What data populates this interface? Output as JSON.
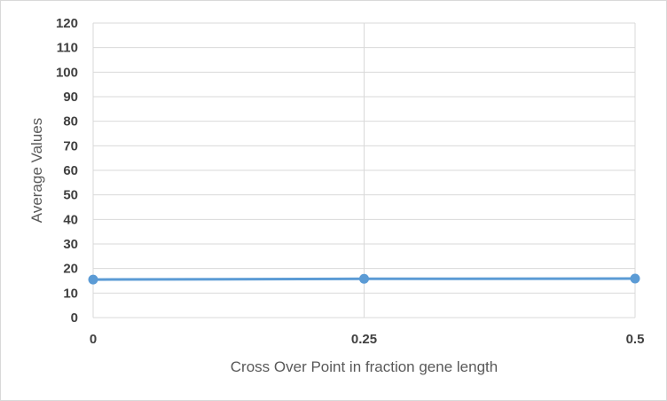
{
  "chart_data": {
    "type": "line",
    "xlabel": "Cross Over Point in fraction gene length",
    "ylabel": "Average Values",
    "x": [
      0,
      0.25,
      0.5
    ],
    "x_tick_labels": [
      "0",
      "0.25",
      "0.5"
    ],
    "ylim": [
      0,
      120
    ],
    "y_ticks": [
      0,
      10,
      20,
      30,
      40,
      50,
      60,
      70,
      80,
      90,
      100,
      110,
      120
    ],
    "grid": true,
    "legend": "none",
    "series": [
      {
        "values": [
          15.5,
          15.8,
          15.9
        ],
        "color": "#5b9bd5"
      }
    ]
  }
}
